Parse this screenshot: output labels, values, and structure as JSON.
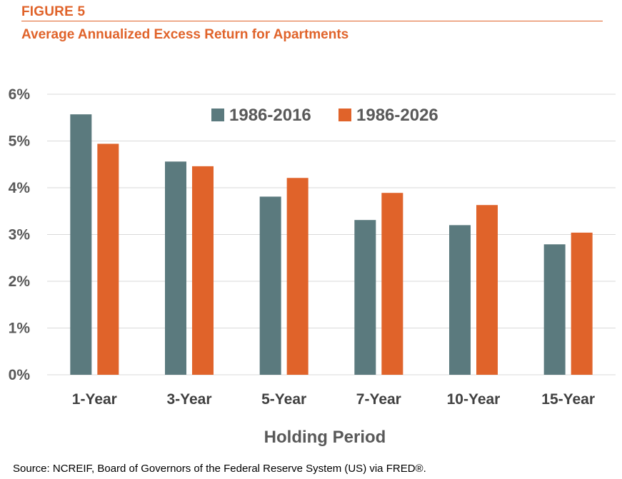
{
  "figure": {
    "label": "FIGURE 5",
    "title": "Average Annualized Excess Return for Apartments",
    "source": "Source: NCREIF, Board of Governors of the Federal Reserve System (US) via FRED®."
  },
  "colors": {
    "accent": "#E0632A",
    "series_1": "#5B7A7E",
    "series_2": "#E0632A",
    "grid": "#D9D9D9"
  },
  "chart_data": {
    "type": "bar",
    "title": "",
    "xlabel": "Holding Period",
    "ylabel": "",
    "categories": [
      "1-Year",
      "3-Year",
      "5-Year",
      "7-Year",
      "10-Year",
      "15-Year"
    ],
    "series": [
      {
        "name": "1986-2016",
        "values": [
          5.57,
          4.56,
          3.81,
          3.31,
          3.2,
          2.79
        ]
      },
      {
        "name": "1986-2026",
        "values": [
          4.94,
          4.46,
          4.21,
          3.89,
          3.63,
          3.04
        ]
      }
    ],
    "ylim": [
      0,
      6
    ],
    "yticks": [
      "0%",
      "1%",
      "2%",
      "3%",
      "4%",
      "5%",
      "6%"
    ],
    "grid": true,
    "legend_position": "top-center"
  }
}
